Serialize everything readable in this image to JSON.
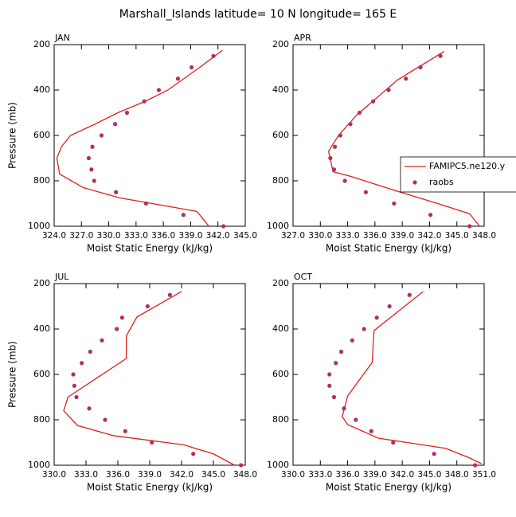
{
  "title": "Marshall_Islands  latitude= 10 N longitude= 165 E",
  "chart_data": [
    {
      "type": "scatter",
      "title": "JAN",
      "xlabel": "Moist Static Energy (kJ/kg)",
      "ylabel": "Pressure (mb)",
      "xlim": [
        324,
        345
      ],
      "xticks": [
        {
          "value": 324,
          "label": "324.0"
        },
        {
          "value": 327,
          "label": "327.0"
        },
        {
          "value": 330,
          "label": "330.0"
        },
        {
          "value": 333,
          "label": "333.0"
        },
        {
          "value": 336,
          "label": "336.0"
        },
        {
          "value": 339,
          "label": "339.0"
        },
        {
          "value": 342,
          "label": "342.0"
        },
        {
          "value": 345,
          "label": "345.0"
        }
      ],
      "ylim": [
        1000,
        200
      ],
      "yticks": [
        200,
        400,
        600,
        800,
        1000
      ],
      "series": [
        {
          "kind": "line",
          "color": "#e0201c",
          "x": [
            342.5,
            340.0,
            336.5,
            334.0,
            331.0,
            328.5,
            325.8,
            324.8,
            324.3,
            324.6,
            327.2,
            331.2,
            336.9,
            339.7,
            341.0
          ],
          "values": [
            225,
            300,
            400,
            450,
            500,
            550,
            600,
            650,
            700,
            770,
            830,
            875,
            915,
            935,
            1000
          ]
        },
        {
          "kind": "points",
          "color": "#b0305f",
          "x": [
            341.5,
            339.1,
            337.6,
            335.5,
            333.9,
            332.0,
            330.7,
            329.2,
            328.2,
            327.8,
            328.1,
            328.4,
            330.8,
            334.1,
            338.2,
            342.6
          ],
          "values": [
            250,
            300,
            350,
            400,
            450,
            500,
            550,
            600,
            650,
            700,
            750,
            800,
            850,
            900,
            950,
            1000
          ]
        }
      ]
    },
    {
      "type": "scatter",
      "title": "APR",
      "xlabel": "Moist Static Energy (kJ/kg)",
      "legend": "right",
      "xlim": [
        327,
        348
      ],
      "xticks": [
        {
          "value": 327,
          "label": "327.0"
        },
        {
          "value": 330,
          "label": "330.0"
        },
        {
          "value": 333,
          "label": "333.0"
        },
        {
          "value": 336,
          "label": "336.0"
        },
        {
          "value": 339,
          "label": "339.0"
        },
        {
          "value": 342,
          "label": "342.0"
        },
        {
          "value": 345,
          "label": "345.0"
        },
        {
          "value": 348,
          "label": "348.0"
        }
      ],
      "ylim": [
        1000,
        200
      ],
      "yticks": [
        200,
        400,
        600,
        800,
        1000
      ],
      "series": [
        {
          "kind": "line",
          "name": "FAMIPC5.ne120.y",
          "color": "#e0201c",
          "x": [
            343.6,
            338.5,
            334.0,
            332.0,
            330.9,
            331.4,
            333.3,
            338.4,
            342.9,
            346.4,
            347.5
          ],
          "values": [
            230,
            355,
            510,
            600,
            670,
            760,
            780,
            845,
            900,
            945,
            1000
          ]
        },
        {
          "kind": "points",
          "name": "raobs",
          "color": "#b0305f",
          "x": [
            343.2,
            341.0,
            339.4,
            337.5,
            335.8,
            334.3,
            333.3,
            332.2,
            331.6,
            331.1,
            331.5,
            332.7,
            335.0,
            338.1,
            342.1,
            346.4
          ],
          "values": [
            250,
            300,
            350,
            400,
            450,
            500,
            550,
            600,
            650,
            700,
            750,
            800,
            850,
            900,
            950,
            1000
          ]
        }
      ]
    },
    {
      "type": "scatter",
      "title": "JUL",
      "xlabel": "Moist Static Energy (kJ/kg)",
      "ylabel": "Pressure (mb)",
      "xlim": [
        330,
        348
      ],
      "xticks": [
        {
          "value": 330,
          "label": "330.0"
        },
        {
          "value": 333,
          "label": "333.0"
        },
        {
          "value": 336,
          "label": "336.0"
        },
        {
          "value": 339,
          "label": "339.0"
        },
        {
          "value": 342,
          "label": "342.0"
        },
        {
          "value": 345,
          "label": "345.0"
        },
        {
          "value": 348,
          "label": "348.0"
        }
      ],
      "ylim": [
        1000,
        200
      ],
      "yticks": [
        200,
        400,
        600,
        800,
        1000
      ],
      "series": [
        {
          "kind": "line",
          "color": "#e0201c",
          "x": [
            342.0,
            337.8,
            336.8,
            336.8,
            331.3,
            330.9,
            332.2,
            335.6,
            342.2,
            345.0,
            347.0
          ],
          "values": [
            235,
            347,
            430,
            530,
            700,
            760,
            825,
            870,
            910,
            950,
            1000
          ]
        },
        {
          "kind": "points",
          "color": "#b0305f",
          "x": [
            340.9,
            338.8,
            336.4,
            335.9,
            334.5,
            333.4,
            332.6,
            331.8,
            331.9,
            332.1,
            333.3,
            334.8,
            336.7,
            339.2,
            343.1,
            347.6
          ],
          "values": [
            250,
            300,
            350,
            400,
            450,
            500,
            550,
            600,
            650,
            700,
            750,
            800,
            850,
            900,
            950,
            1000
          ]
        }
      ]
    },
    {
      "type": "scatter",
      "title": "OCT",
      "xlabel": "Moist Static Energy (kJ/kg)",
      "xlim": [
        330,
        351
      ],
      "xticks": [
        {
          "value": 330,
          "label": "330.0"
        },
        {
          "value": 333,
          "label": "333.0"
        },
        {
          "value": 336,
          "label": "336.0"
        },
        {
          "value": 339,
          "label": "339.0"
        },
        {
          "value": 342,
          "label": "342.0"
        },
        {
          "value": 345,
          "label": "345.0"
        },
        {
          "value": 348,
          "label": "348.0"
        },
        {
          "value": 351,
          "label": "351.0"
        }
      ],
      "ylim": [
        1000,
        200
      ],
      "yticks": [
        200,
        400,
        600,
        800,
        1000
      ],
      "series": [
        {
          "kind": "line",
          "color": "#e0201c",
          "x": [
            344.3,
            338.9,
            338.7,
            336.0,
            335.4,
            336.0,
            339.4,
            346.8,
            349.4,
            350.7
          ],
          "values": [
            235,
            407,
            547,
            695,
            786,
            821,
            881,
            926,
            968,
            993
          ]
        },
        {
          "kind": "points",
          "color": "#b0305f",
          "x": [
            342.8,
            340.6,
            339.2,
            337.8,
            336.5,
            335.3,
            334.7,
            334.0,
            334.0,
            334.5,
            335.6,
            336.9,
            338.6,
            341.0,
            345.5,
            350.0
          ],
          "values": [
            250,
            300,
            350,
            400,
            450,
            500,
            550,
            600,
            650,
            700,
            750,
            800,
            850,
            900,
            950,
            1000
          ]
        }
      ]
    }
  ]
}
